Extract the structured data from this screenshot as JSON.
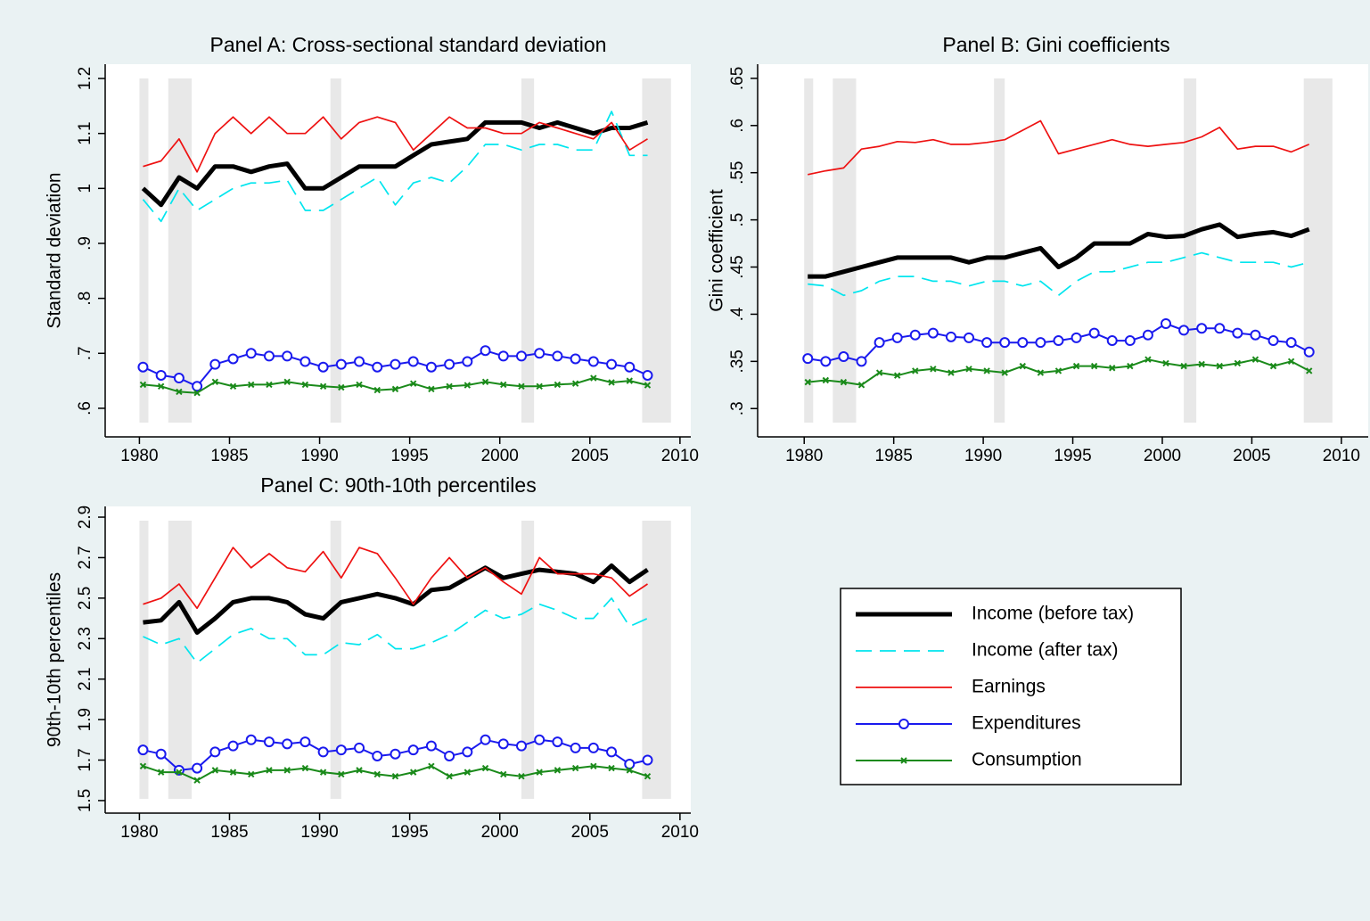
{
  "chart_data": [
    {
      "type": "line",
      "title": "Panel A: Cross-sectional standard deviation",
      "y_label": "Standard deviation",
      "x": [
        1980.2,
        1981.2,
        1982.2,
        1983.2,
        1984.2,
        1985.2,
        1986.2,
        1987.2,
        1988.2,
        1989.2,
        1990.2,
        1991.2,
        1992.2,
        1993.2,
        1994.2,
        1995.2,
        1996.2,
        1997.2,
        1998.2,
        1999.2,
        2000.2,
        2001.2,
        2002.2,
        2003.2,
        2004.2,
        2005.2,
        2006.2,
        2007.2,
        2008.2
      ],
      "xlim": [
        1978.1,
        2010.6
      ],
      "xticks": [
        1980,
        1985,
        1990,
        1995,
        2000,
        2005,
        2010
      ],
      "ylim": [
        0.548,
        1.226
      ],
      "yticks": [
        {
          "value": 0.6,
          "label": ".6"
        },
        {
          "value": 0.7,
          "label": ".7"
        },
        {
          "value": 0.8,
          "label": ".8"
        },
        {
          "value": 0.9,
          "label": ".9"
        },
        1,
        1.1,
        1.2
      ],
      "shading": [
        [
          1980.0,
          1980.5
        ],
        [
          1981.6,
          1982.9
        ],
        [
          1990.6,
          1991.2
        ],
        [
          2001.2,
          2001.9
        ],
        [
          2007.9,
          2009.5
        ]
      ],
      "series": [
        {
          "name": "Income (before tax)",
          "color": "#000000",
          "style": "thick",
          "values": [
            1.0,
            0.97,
            1.02,
            1.0,
            1.04,
            1.04,
            1.03,
            1.04,
            1.045,
            1.0,
            1.0,
            1.02,
            1.04,
            1.04,
            1.04,
            1.06,
            1.08,
            1.085,
            1.09,
            1.12,
            1.12,
            1.12,
            1.11,
            1.12,
            1.11,
            1.1,
            1.11,
            1.11,
            1.12
          ]
        },
        {
          "name": "Income (after tax)",
          "color": "#00e5ee",
          "style": "dash",
          "values": [
            0.98,
            0.94,
            1.0,
            0.96,
            0.98,
            1.0,
            1.01,
            1.01,
            1.015,
            0.96,
            0.96,
            0.98,
            1.0,
            1.02,
            0.97,
            1.01,
            1.02,
            1.01,
            1.04,
            1.08,
            1.08,
            1.07,
            1.08,
            1.08,
            1.07,
            1.07,
            1.14,
            1.06,
            1.06
          ]
        },
        {
          "name": "Earnings",
          "color": "#ee1111",
          "style": "line",
          "values": [
            1.04,
            1.05,
            1.09,
            1.03,
            1.1,
            1.13,
            1.1,
            1.13,
            1.1,
            1.1,
            1.13,
            1.09,
            1.12,
            1.13,
            1.12,
            1.07,
            1.1,
            1.13,
            1.11,
            1.11,
            1.1,
            1.1,
            1.12,
            1.11,
            1.1,
            1.09,
            1.12,
            1.07,
            1.09
          ]
        },
        {
          "name": "Expenditures",
          "color": "#1a1aee",
          "style": "circle",
          "values": [
            0.675,
            0.66,
            0.655,
            0.64,
            0.68,
            0.69,
            0.7,
            0.695,
            0.695,
            0.685,
            0.675,
            0.68,
            0.685,
            0.675,
            0.68,
            0.685,
            0.675,
            0.68,
            0.685,
            0.705,
            0.695,
            0.695,
            0.7,
            0.695,
            0.69,
            0.685,
            0.68,
            0.675,
            0.66
          ]
        },
        {
          "name": "Consumption",
          "color": "#1a8a1a",
          "style": "cross",
          "values": [
            0.643,
            0.64,
            0.63,
            0.628,
            0.648,
            0.64,
            0.643,
            0.643,
            0.648,
            0.643,
            0.64,
            0.638,
            0.643,
            0.633,
            0.635,
            0.645,
            0.635,
            0.64,
            0.642,
            0.648,
            0.643,
            0.64,
            0.64,
            0.643,
            0.645,
            0.655,
            0.647,
            0.65,
            0.642
          ]
        }
      ]
    },
    {
      "type": "line",
      "title": "Panel B: Gini coefficients",
      "y_label": "Gini coefficient",
      "x": [
        1980.2,
        1981.2,
        1982.2,
        1983.2,
        1984.2,
        1985.2,
        1986.2,
        1987.2,
        1988.2,
        1989.2,
        1990.2,
        1991.2,
        1992.2,
        1993.2,
        1994.2,
        1995.2,
        1996.2,
        1997.2,
        1998.2,
        1999.2,
        2000.2,
        2001.2,
        2002.2,
        2003.2,
        2004.2,
        2005.2,
        2006.2,
        2007.2,
        2008.2
      ],
      "xlim": [
        1977.4,
        2011.5
      ],
      "xticks": [
        1980,
        1985,
        1990,
        1995,
        2000,
        2005,
        2010
      ],
      "ylim": [
        0.27,
        0.665
      ],
      "yticks": [
        {
          "value": 0.3,
          "label": ".3"
        },
        {
          "value": 0.35,
          "label": ".35"
        },
        {
          "value": 0.4,
          "label": ".4"
        },
        {
          "value": 0.45,
          "label": ".45"
        },
        {
          "value": 0.5,
          "label": ".5"
        },
        {
          "value": 0.55,
          "label": ".55"
        },
        {
          "value": 0.6,
          "label": ".6"
        },
        {
          "value": 0.65,
          "label": ".65"
        }
      ],
      "shading": [
        [
          1980.0,
          1980.5
        ],
        [
          1981.6,
          1982.9
        ],
        [
          1990.6,
          1991.2
        ],
        [
          2001.2,
          2001.9
        ],
        [
          2007.9,
          2009.5
        ]
      ],
      "series": [
        {
          "color": "#000000",
          "style": "thick",
          "values": [
            0.44,
            0.44,
            0.445,
            0.45,
            0.455,
            0.46,
            0.46,
            0.46,
            0.46,
            0.455,
            0.46,
            0.46,
            0.465,
            0.47,
            0.45,
            0.46,
            0.475,
            0.475,
            0.475,
            0.485,
            0.482,
            0.483,
            0.49,
            0.495,
            0.482,
            0.485,
            0.487,
            0.483,
            0.49
          ]
        },
        {
          "color": "#00e5ee",
          "style": "dash",
          "values": [
            0.432,
            0.43,
            0.42,
            0.425,
            0.435,
            0.44,
            0.44,
            0.435,
            0.435,
            0.43,
            0.435,
            0.435,
            0.43,
            0.435,
            0.42,
            0.435,
            0.445,
            0.445,
            0.45,
            0.455,
            0.455,
            0.46,
            0.465,
            0.46,
            0.455,
            0.455,
            0.455,
            0.45,
            0.455
          ]
        },
        {
          "color": "#ee1111",
          "style": "line",
          "values": [
            0.548,
            0.552,
            0.555,
            0.575,
            0.578,
            0.583,
            0.582,
            0.585,
            0.58,
            0.58,
            0.582,
            0.585,
            0.595,
            0.605,
            0.57,
            0.575,
            0.58,
            0.585,
            0.58,
            0.578,
            0.58,
            0.582,
            0.588,
            0.598,
            0.575,
            0.578,
            0.578,
            0.572,
            0.58
          ]
        },
        {
          "color": "#1a1aee",
          "style": "circle",
          "values": [
            0.353,
            0.35,
            0.355,
            0.35,
            0.37,
            0.375,
            0.378,
            0.38,
            0.376,
            0.375,
            0.37,
            0.37,
            0.37,
            0.37,
            0.372,
            0.375,
            0.38,
            0.372,
            0.372,
            0.378,
            0.39,
            0.383,
            0.385,
            0.385,
            0.38,
            0.378,
            0.372,
            0.37,
            0.36
          ]
        },
        {
          "color": "#1a8a1a",
          "style": "cross",
          "values": [
            0.328,
            0.33,
            0.328,
            0.325,
            0.338,
            0.335,
            0.34,
            0.342,
            0.338,
            0.342,
            0.34,
            0.338,
            0.345,
            0.338,
            0.34,
            0.345,
            0.345,
            0.343,
            0.345,
            0.352,
            0.348,
            0.345,
            0.347,
            0.345,
            0.348,
            0.352,
            0.345,
            0.35,
            0.34
          ]
        }
      ]
    },
    {
      "type": "line",
      "title": "Panel C: 90th-10th percentiles",
      "y_label": "90th-10th percentiles",
      "x": [
        1980.2,
        1981.2,
        1982.2,
        1983.2,
        1984.2,
        1985.2,
        1986.2,
        1987.2,
        1988.2,
        1989.2,
        1990.2,
        1991.2,
        1992.2,
        1993.2,
        1994.2,
        1995.2,
        1996.2,
        1997.2,
        1998.2,
        1999.2,
        2000.2,
        2001.2,
        2002.2,
        2003.2,
        2004.2,
        2005.2,
        2006.2,
        2007.2,
        2008.2
      ],
      "xlim": [
        1978.1,
        2010.6
      ],
      "xticks": [
        1980,
        1985,
        1990,
        1995,
        2000,
        2005,
        2010
      ],
      "ylim": [
        1.438,
        2.953
      ],
      "yticks": [
        1.5,
        1.7,
        1.9,
        2.1,
        2.3,
        2.5,
        2.7,
        2.9
      ],
      "shading": [
        [
          1980.0,
          1980.5
        ],
        [
          1981.6,
          1982.9
        ],
        [
          1990.6,
          1991.2
        ],
        [
          2001.2,
          2001.9
        ],
        [
          2007.9,
          2009.5
        ]
      ],
      "series": [
        {
          "color": "#000000",
          "style": "thick",
          "values": [
            2.38,
            2.39,
            2.48,
            2.33,
            2.4,
            2.48,
            2.5,
            2.5,
            2.48,
            2.42,
            2.4,
            2.48,
            2.5,
            2.52,
            2.5,
            2.47,
            2.54,
            2.55,
            2.6,
            2.65,
            2.6,
            2.62,
            2.64,
            2.63,
            2.62,
            2.58,
            2.66,
            2.58,
            2.64
          ]
        },
        {
          "color": "#00e5ee",
          "style": "dash",
          "values": [
            2.31,
            2.27,
            2.3,
            2.18,
            2.25,
            2.32,
            2.35,
            2.3,
            2.3,
            2.22,
            2.22,
            2.28,
            2.27,
            2.32,
            2.25,
            2.25,
            2.28,
            2.32,
            2.38,
            2.44,
            2.4,
            2.42,
            2.47,
            2.44,
            2.4,
            2.4,
            2.5,
            2.36,
            2.4
          ]
        },
        {
          "color": "#ee1111",
          "style": "line",
          "values": [
            2.47,
            2.5,
            2.57,
            2.45,
            2.6,
            2.75,
            2.65,
            2.72,
            2.65,
            2.63,
            2.73,
            2.6,
            2.75,
            2.72,
            2.6,
            2.47,
            2.6,
            2.7,
            2.6,
            2.65,
            2.58,
            2.52,
            2.7,
            2.62,
            2.62,
            2.62,
            2.6,
            2.51,
            2.57
          ]
        },
        {
          "color": "#1a1aee",
          "style": "circle",
          "values": [
            1.75,
            1.73,
            1.65,
            1.66,
            1.74,
            1.77,
            1.8,
            1.79,
            1.78,
            1.79,
            1.74,
            1.75,
            1.76,
            1.72,
            1.73,
            1.75,
            1.77,
            1.72,
            1.74,
            1.8,
            1.78,
            1.77,
            1.8,
            1.79,
            1.76,
            1.76,
            1.74,
            1.68,
            1.7
          ]
        },
        {
          "color": "#1a8a1a",
          "style": "cross",
          "values": [
            1.67,
            1.64,
            1.64,
            1.6,
            1.65,
            1.64,
            1.63,
            1.65,
            1.65,
            1.66,
            1.64,
            1.63,
            1.65,
            1.63,
            1.62,
            1.64,
            1.67,
            1.62,
            1.64,
            1.66,
            1.63,
            1.62,
            1.64,
            1.65,
            1.66,
            1.67,
            1.66,
            1.65,
            1.62
          ]
        }
      ]
    }
  ]
}
